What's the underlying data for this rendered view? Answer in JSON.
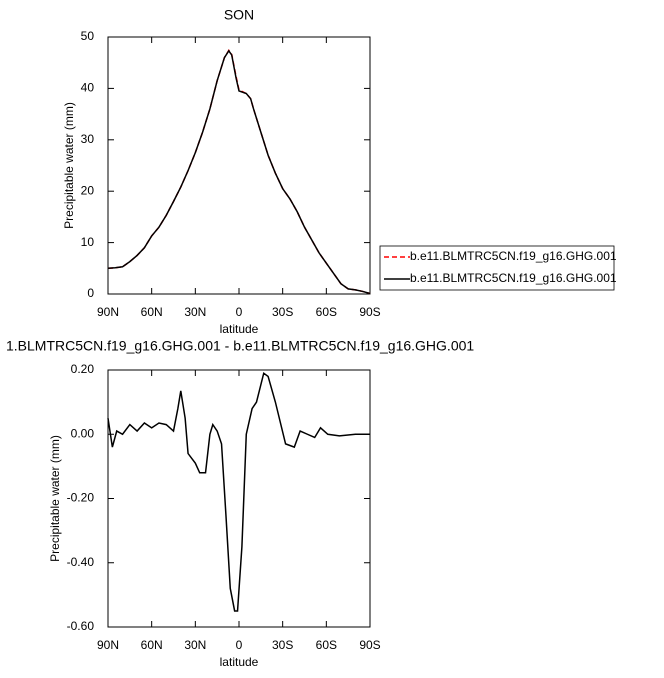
{
  "chart_data": [
    {
      "type": "line",
      "title": "SON",
      "x_label": "latitude",
      "y_label": "Precipitable water (mm)",
      "x": [
        90,
        85,
        80,
        75,
        70,
        65,
        60,
        55,
        50,
        45,
        40,
        35,
        30,
        25,
        20,
        15,
        10,
        7,
        5,
        2,
        0,
        -5,
        -8,
        -10,
        -15,
        -20,
        -25,
        -30,
        -35,
        -40,
        -45,
        -50,
        -55,
        -60,
        -65,
        -70,
        -75,
        -80,
        -85,
        -90
      ],
      "series": [
        {
          "name": "b.e11.BLMTRC5CN.f19_g16.GHG.001",
          "color": "#ff0000",
          "line_style": "dashed",
          "values": [
            5.0,
            5.1,
            5.3,
            6.3,
            7.5,
            9.0,
            11.3,
            13.0,
            15.3,
            18.0,
            20.8,
            24.0,
            27.5,
            31.5,
            36.0,
            41.5,
            46.0,
            47.4,
            46.6,
            42.3,
            39.7,
            39,
            38,
            36,
            31.5,
            27,
            23.5,
            20.5,
            18.5,
            16,
            13,
            10.5,
            8,
            6,
            4,
            2.0,
            1.0,
            0.8,
            0.5,
            0.1
          ]
        },
        {
          "name": "b.e11.BLMTRC5CN.f19_g16.GHG.001",
          "color": "#000000",
          "line_style": "solid",
          "values": [
            5.0,
            5.1,
            5.3,
            6.3,
            7.5,
            9.0,
            11.3,
            13.0,
            15.3,
            18.0,
            20.8,
            24.0,
            27.5,
            31.5,
            36.0,
            41.5,
            46.0,
            47.3,
            46.5,
            42,
            39.5,
            39,
            38,
            36,
            31.5,
            27,
            23.5,
            20.5,
            18.5,
            16,
            13,
            10.5,
            8,
            6,
            4,
            2.0,
            1.0,
            0.8,
            0.5,
            0.1
          ]
        }
      ],
      "xlim": [
        90,
        -90
      ],
      "xticks": [
        {
          "value": 90,
          "label": "90N"
        },
        {
          "value": 60,
          "label": "60N"
        },
        {
          "value": 30,
          "label": "30N"
        },
        0,
        {
          "value": -30,
          "label": "30S"
        },
        {
          "value": -60,
          "label": "60S"
        },
        {
          "value": -90,
          "label": "90S"
        }
      ],
      "ylim": [
        0,
        50
      ],
      "yticks": [
        0,
        10,
        20,
        30,
        40,
        50
      ],
      "legend_position": "right"
    },
    {
      "type": "line",
      "title": "1.BLMTRC5CN.f19_g16.GHG.001 - b.e11.BLMTRC5CN.f19_g16.GHG.001",
      "x_label": "latitude",
      "y_label": "Precipitable water (mm)",
      "x": [
        90,
        87,
        84,
        80,
        75,
        70,
        65,
        60,
        55,
        50,
        45,
        42,
        40,
        37,
        35,
        30,
        27,
        23,
        20,
        18,
        15,
        12,
        9,
        6,
        3,
        1,
        -2,
        -5,
        -9,
        -12,
        -17,
        -20,
        -25,
        -32,
        -38,
        -42,
        -47,
        -52,
        -56,
        -61,
        -69,
        -80,
        -90
      ],
      "series": [
        {
          "color": "#000000",
          "line_style": "solid",
          "values": [
            0.05,
            -0.04,
            0.01,
            0.0,
            0.03,
            0.01,
            0.035,
            0.02,
            0.035,
            0.03,
            0.01,
            0.08,
            0.135,
            0.05,
            -0.06,
            -0.09,
            -0.12,
            -0.12,
            0.0,
            0.03,
            0.01,
            -0.03,
            -0.25,
            -0.48,
            -0.55,
            -0.55,
            -0.35,
            0.0,
            0.08,
            0.1,
            0.19,
            0.18,
            0.1,
            -0.03,
            -0.04,
            0.01,
            0.0,
            -0.01,
            0.02,
            0.0,
            -0.005,
            0.0,
            0.0
          ]
        }
      ],
      "xlim": [
        90,
        -90
      ],
      "xticks": [
        {
          "value": 90,
          "label": "90N"
        },
        {
          "value": 60,
          "label": "60N"
        },
        {
          "value": 30,
          "label": "30N"
        },
        0,
        {
          "value": -30,
          "label": "30S"
        },
        {
          "value": -60,
          "label": "60S"
        },
        {
          "value": -90,
          "label": "90S"
        }
      ],
      "ylim": [
        -0.6,
        0.2
      ],
      "yticks": [
        {
          "value": -0.6,
          "label": "-0.60"
        },
        {
          "value": -0.4,
          "label": "-0.40"
        },
        {
          "value": -0.2,
          "label": "-0.20"
        },
        {
          "value": 0,
          "label": "0.00"
        },
        {
          "value": 0.2,
          "label": "0.20"
        }
      ]
    }
  ]
}
